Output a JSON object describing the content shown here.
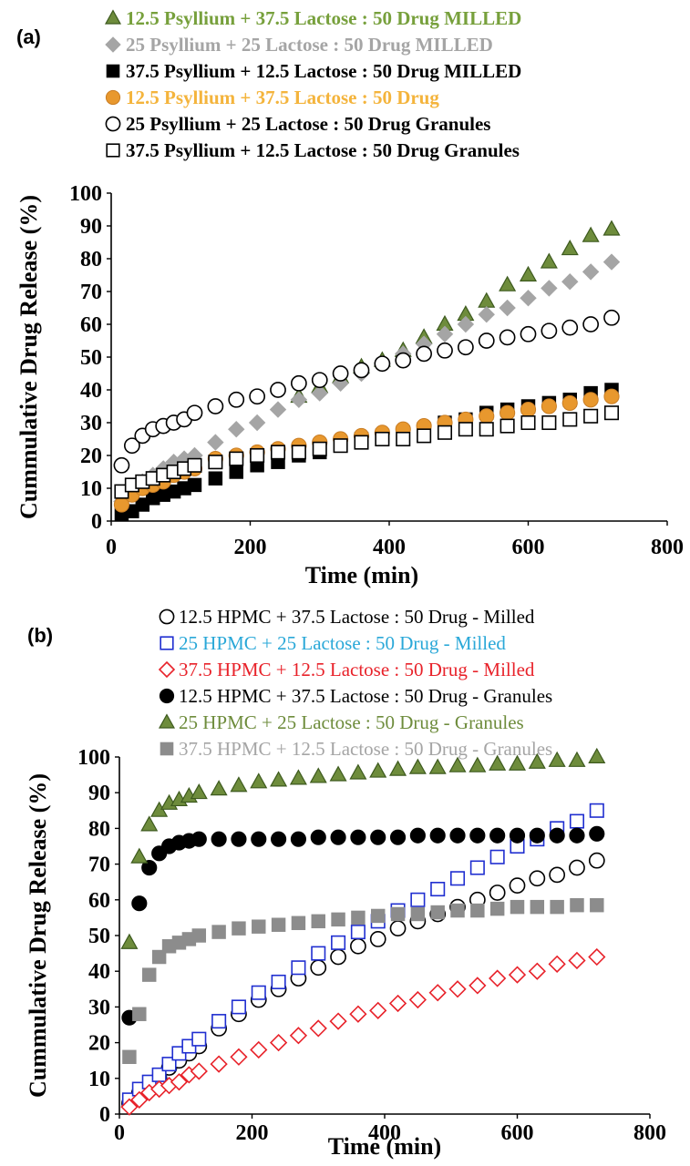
{
  "chart_data": [
    {
      "panel": "(a)",
      "type": "scatter",
      "xlabel": "Time (min)",
      "ylabel": "Cummulative Drug Release (%)",
      "xlim": [
        0,
        800
      ],
      "ylim": [
        0,
        100
      ],
      "xticks": [
        0,
        200,
        400,
        600,
        800
      ],
      "yticks": [
        0,
        10,
        20,
        30,
        40,
        50,
        60,
        70,
        80,
        90,
        100
      ],
      "legend_placement": "top",
      "grid": false,
      "series": [
        {
          "name": "12.5 Psyllium + 37.5 Lactose : 50 Drug MILLED",
          "marker": "triangle",
          "color": "#6e8c3c",
          "text_color": "#77a03c",
          "bold": true,
          "x": [
            270,
            300,
            330,
            360,
            390,
            420,
            450,
            480,
            510,
            540,
            570,
            600,
            630,
            660,
            690,
            720
          ],
          "y": [
            38,
            41,
            44,
            47,
            49,
            52,
            56,
            60,
            63,
            67,
            72,
            75,
            79,
            83,
            87,
            89
          ]
        },
        {
          "name": "25 Psyllium + 25 Lactose : 50 Drug MILLED",
          "marker": "diamond",
          "color": "#a5a5a5",
          "text_color": "#a5a5a5",
          "bold": true,
          "x": [
            15,
            30,
            45,
            60,
            75,
            90,
            105,
            120,
            150,
            180,
            210,
            240,
            270,
            300,
            330,
            360,
            390,
            420,
            450,
            480,
            510,
            540,
            570,
            600,
            630,
            660,
            690,
            720
          ],
          "y": [
            6,
            9,
            12,
            14,
            16,
            18,
            19,
            20,
            24,
            28,
            30,
            34,
            37,
            39,
            42,
            45,
            48,
            51,
            54,
            57,
            60,
            63,
            65,
            68,
            71,
            73,
            76,
            79
          ]
        },
        {
          "name": "37.5 Psyllium + 12.5 Lactose : 50 Drug MILLED",
          "marker": "square-filled",
          "color": "#000000",
          "text_color": "#000000",
          "bold": true,
          "x": [
            15,
            30,
            45,
            60,
            75,
            90,
            105,
            120,
            150,
            180,
            210,
            240,
            270,
            300,
            330,
            360,
            390,
            420,
            450,
            480,
            510,
            540,
            570,
            600,
            630,
            660,
            690,
            720
          ],
          "y": [
            2,
            3,
            5,
            7,
            8,
            9,
            10,
            11,
            13,
            15,
            17,
            18,
            20,
            21,
            23,
            25,
            26,
            27,
            28,
            30,
            31,
            33,
            34,
            35,
            36,
            37,
            39,
            40
          ]
        },
        {
          "name": "12.5 Psyllium + 37.5 Lactose : 50 Drug",
          "marker": "circle-filled",
          "color": "#e8982e",
          "text_color": "#f4b43c",
          "bold": true,
          "x": [
            15,
            30,
            45,
            60,
            75,
            90,
            105,
            120,
            150,
            180,
            210,
            240,
            270,
            300,
            330,
            360,
            390,
            420,
            450,
            480,
            510,
            540,
            570,
            600,
            630,
            660,
            690,
            720
          ],
          "y": [
            5,
            8,
            10,
            11,
            12,
            14,
            15,
            16,
            19,
            20,
            21,
            22,
            23,
            24,
            25,
            26,
            27,
            28,
            29,
            30,
            31,
            32,
            33,
            34,
            35,
            36,
            37,
            38
          ]
        },
        {
          "name": "25 Psyllium + 25 Lactose : 50 Drug Granules",
          "marker": "circle-open",
          "color": "#000000",
          "text_color": "#000000",
          "bold": true,
          "x": [
            15,
            30,
            45,
            60,
            75,
            90,
            105,
            120,
            150,
            180,
            210,
            240,
            270,
            300,
            330,
            360,
            390,
            420,
            450,
            480,
            510,
            540,
            570,
            600,
            630,
            660,
            690,
            720
          ],
          "y": [
            17,
            23,
            26,
            28,
            29,
            30,
            31,
            33,
            35,
            37,
            38,
            40,
            42,
            43,
            45,
            46,
            48,
            49,
            51,
            52,
            53,
            55,
            56,
            57,
            58,
            59,
            60,
            62
          ]
        },
        {
          "name": "37.5 Psyllium + 12.5 Lactose : 50 Drug Granules",
          "marker": "square-open",
          "color": "#000000",
          "text_color": "#000000",
          "bold": true,
          "x": [
            15,
            30,
            45,
            60,
            75,
            90,
            105,
            120,
            150,
            180,
            210,
            240,
            270,
            300,
            330,
            360,
            390,
            420,
            450,
            480,
            510,
            540,
            570,
            600,
            630,
            660,
            690,
            720
          ],
          "y": [
            9,
            11,
            12,
            13,
            14,
            15,
            16,
            17,
            18,
            19,
            20,
            21,
            21,
            22,
            23,
            24,
            25,
            25,
            26,
            27,
            28,
            28,
            29,
            30,
            30,
            31,
            32,
            33
          ]
        }
      ]
    },
    {
      "panel": "(b)",
      "type": "scatter",
      "xlabel": "Time (min)",
      "ylabel": "Cummulative Drug Release (%)",
      "xlim": [
        0,
        800
      ],
      "ylim": [
        0,
        100
      ],
      "xticks": [
        0,
        200,
        400,
        600,
        800
      ],
      "yticks": [
        0,
        10,
        20,
        30,
        40,
        50,
        60,
        70,
        80,
        90,
        100
      ],
      "legend_placement": "top",
      "grid": false,
      "series": [
        {
          "name": "12.5 HPMC + 37.5 Lactose : 50 Drug - Milled",
          "marker": "circle-open",
          "color": "#000000",
          "text_color": "#000000",
          "bold": false,
          "x": [
            15,
            30,
            45,
            60,
            75,
            90,
            105,
            120,
            150,
            180,
            210,
            240,
            270,
            300,
            330,
            360,
            390,
            420,
            450,
            480,
            510,
            540,
            570,
            600,
            630,
            660,
            690,
            720
          ],
          "y": [
            3,
            6,
            8,
            10,
            13,
            15,
            17,
            19,
            24,
            28,
            32,
            35,
            38,
            41,
            44,
            47,
            49,
            52,
            54,
            56,
            58,
            60,
            62,
            64,
            66,
            67,
            69,
            71
          ]
        },
        {
          "name": "25 HPMC + 25 Lactose : 50 Drug - Milled",
          "marker": "square-open",
          "color": "#1f2ed0",
          "text_color": "#2aa8d8",
          "bold": false,
          "x": [
            15,
            30,
            45,
            60,
            75,
            90,
            105,
            120,
            150,
            180,
            210,
            240,
            270,
            300,
            330,
            360,
            390,
            420,
            450,
            480,
            510,
            540,
            570,
            600,
            630,
            660,
            690,
            720
          ],
          "y": [
            4,
            7,
            9,
            11,
            14,
            17,
            19,
            21,
            26,
            30,
            34,
            37,
            41,
            45,
            48,
            51,
            54,
            57,
            60,
            63,
            66,
            69,
            72,
            75,
            77,
            80,
            82,
            85
          ]
        },
        {
          "name": "37.5 HPMC + 12.5 Lactose : 50 Drug - Milled",
          "marker": "diamond-open",
          "color": "#e8222a",
          "text_color": "#e8222a",
          "bold": false,
          "x": [
            15,
            30,
            45,
            60,
            75,
            90,
            105,
            120,
            150,
            180,
            210,
            240,
            270,
            300,
            330,
            360,
            390,
            420,
            450,
            480,
            510,
            540,
            570,
            600,
            630,
            660,
            690,
            720
          ],
          "y": [
            2,
            4,
            6,
            7,
            8,
            9,
            11,
            12,
            14,
            16,
            18,
            20,
            22,
            24,
            26,
            28,
            29,
            31,
            32,
            34,
            35,
            36,
            38,
            39,
            40,
            42,
            43,
            44
          ]
        },
        {
          "name": "12.5 HPMC + 37.5 Lactose : 50 Drug - Granules",
          "marker": "circle-filled",
          "color": "#000000",
          "text_color": "#000000",
          "bold": false,
          "x": [
            15,
            30,
            45,
            60,
            75,
            90,
            105,
            120,
            150,
            180,
            210,
            240,
            270,
            300,
            330,
            360,
            390,
            420,
            450,
            480,
            510,
            540,
            570,
            600,
            630,
            660,
            690,
            720
          ],
          "y": [
            27,
            59,
            69,
            73,
            75,
            76,
            76.5,
            77,
            77,
            77,
            77,
            77,
            77,
            77.5,
            77.5,
            77.5,
            77.5,
            77.5,
            78,
            78,
            78,
            78,
            78,
            78,
            78,
            78,
            78,
            78.5
          ]
        },
        {
          "name": "25 HPMC + 25 Lactose : 50 Drug - Granules",
          "marker": "triangle",
          "color": "#6e8c3c",
          "text_color": "#6e8c3c",
          "bold": false,
          "x": [
            15,
            30,
            45,
            60,
            75,
            90,
            105,
            120,
            150,
            180,
            210,
            240,
            270,
            300,
            330,
            360,
            390,
            420,
            450,
            480,
            510,
            540,
            570,
            600,
            630,
            660,
            690,
            720
          ],
          "y": [
            48,
            72,
            81,
            85,
            87,
            88,
            89,
            90,
            91,
            92,
            93,
            93.5,
            94,
            94.5,
            95,
            95.5,
            96,
            96.5,
            97,
            97,
            97.5,
            97.5,
            98,
            98,
            98.5,
            99,
            99,
            100
          ]
        },
        {
          "name": "37.5 HPMC + 12.5 Lactose : 50 Drug - Granules",
          "marker": "square-filled",
          "color": "#8c8c8c",
          "text_color": "#a5a5a5",
          "bold": false,
          "x": [
            15,
            30,
            45,
            60,
            75,
            90,
            105,
            120,
            150,
            180,
            210,
            240,
            270,
            300,
            330,
            360,
            390,
            420,
            450,
            480,
            510,
            540,
            570,
            600,
            630,
            660,
            690,
            720
          ],
          "y": [
            16,
            28,
            39,
            44,
            47,
            48,
            49,
            50,
            51,
            52,
            52.5,
            53,
            53.5,
            54,
            54.5,
            55,
            55.5,
            56,
            56,
            56.5,
            57,
            57,
            57.5,
            58,
            58,
            58,
            58.5,
            58.5
          ]
        }
      ]
    }
  ]
}
